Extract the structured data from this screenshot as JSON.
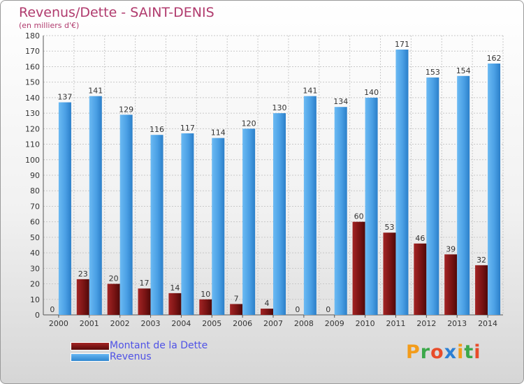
{
  "header": {
    "title": "Revenus/Dette - SAINT-DENIS",
    "subtitle": "(en milliers d'€)"
  },
  "legend": {
    "dette_label": "Montant de la Dette",
    "revenus_label": "Revenus"
  },
  "logo": {
    "text": "Proxiti",
    "colors": [
      "#f39c1a",
      "#3ca84a",
      "#e84c2a",
      "#2b7fd4",
      "#f39c1a",
      "#3ca84a",
      "#e84c2a"
    ]
  },
  "chart_data": {
    "type": "bar",
    "title": "Revenus/Dette - SAINT-DENIS",
    "subtitle": "(en milliers d'€)",
    "categories": [
      "2000",
      "2001",
      "2002",
      "2003",
      "2004",
      "2005",
      "2006",
      "2007",
      "2008",
      "2009",
      "2010",
      "2011",
      "2012",
      "2013",
      "2014"
    ],
    "series": [
      {
        "name": "Montant de la Dette",
        "color": "#7a1414",
        "values": [
          0,
          23,
          20,
          17,
          14,
          10,
          7,
          4,
          0,
          0,
          60,
          53,
          46,
          39,
          32
        ]
      },
      {
        "name": "Revenus",
        "color": "#4a9fe4",
        "values": [
          137,
          141,
          129,
          116,
          117,
          114,
          120,
          130,
          141,
          134,
          140,
          171,
          153,
          154,
          162
        ]
      }
    ],
    "ylim": [
      0,
      180
    ],
    "yticks": [
      0,
      10,
      20,
      30,
      40,
      50,
      60,
      70,
      80,
      90,
      100,
      110,
      120,
      130,
      140,
      150,
      160,
      170,
      180
    ],
    "grid": true,
    "legend_position": "bottom-left"
  }
}
